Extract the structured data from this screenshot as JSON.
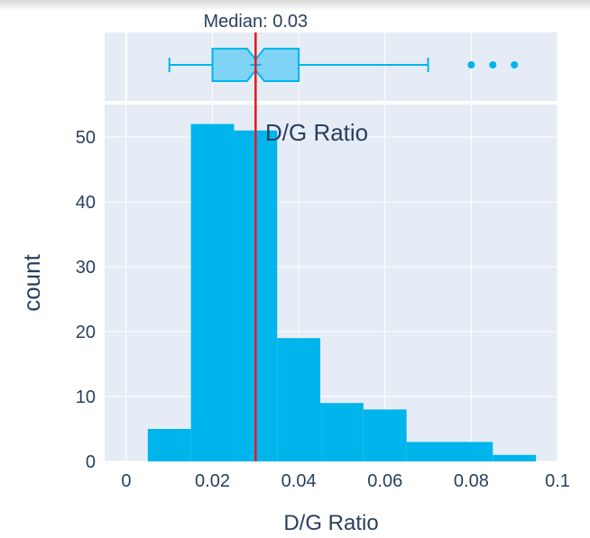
{
  "chart_data": {
    "type": "bar",
    "xlabel": "D/G Ratio",
    "ylabel": "count",
    "xlim": [
      -0.005,
      0.1
    ],
    "ylim": [
      0,
      55
    ],
    "xticks": [
      0,
      0.02,
      0.04,
      0.06,
      0.08,
      0.1
    ],
    "xtick_labels": [
      "0",
      "0.02",
      "0.04",
      "0.06",
      "0.08",
      "0.1"
    ],
    "yticks": [
      0,
      10,
      20,
      30,
      40,
      50
    ],
    "ytick_labels": [
      "0",
      "10",
      "20",
      "30",
      "40",
      "50"
    ],
    "grid": true,
    "bins": [
      {
        "x0": 0.005,
        "x1": 0.015,
        "count": 5
      },
      {
        "x0": 0.015,
        "x1": 0.025,
        "count": 52
      },
      {
        "x0": 0.025,
        "x1": 0.035,
        "count": 51
      },
      {
        "x0": 0.035,
        "x1": 0.045,
        "count": 19
      },
      {
        "x0": 0.045,
        "x1": 0.055,
        "count": 9
      },
      {
        "x0": 0.055,
        "x1": 0.065,
        "count": 8
      },
      {
        "x0": 0.065,
        "x1": 0.085,
        "count": 3
      },
      {
        "x0": 0.085,
        "x1": 0.095,
        "count": 1
      }
    ],
    "boxplot": {
      "min": 0.01,
      "q1": 0.02,
      "median": 0.03,
      "q3": 0.04,
      "max": 0.07,
      "notch_low": 0.028,
      "notch_high": 0.032,
      "outliers": [
        0.08,
        0.085,
        0.09
      ]
    },
    "median_line": 0.03,
    "median_label": "Median: 0.03",
    "annotation": "D/G Ratio",
    "colors": {
      "bar": "#00b5eb",
      "box_fill": "#7fd3f4",
      "box_line": "#00b5eb",
      "median_line": "#e8171f",
      "plot_bg": "#e5ecf6",
      "grid": "#ffffff",
      "text": "#2a3f5f"
    }
  }
}
